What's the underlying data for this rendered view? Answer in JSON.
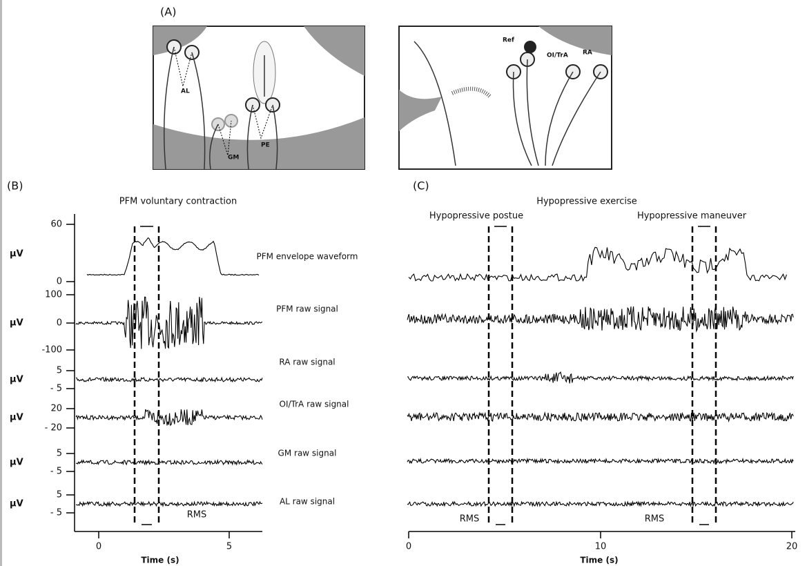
{
  "panel_a": {
    "label": "(A)",
    "left_labels": [
      "AL",
      "GM",
      "PE"
    ],
    "right_labels": [
      "Ref",
      "OI/TrA",
      "RA"
    ]
  },
  "panel_b": {
    "label": "(B)",
    "title": "PFM voluntary contraction",
    "unit": "μV",
    "channels": [
      {
        "name": "PFM envelope waveform",
        "ticks": [
          "60",
          "0"
        ]
      },
      {
        "name": "PFM raw signal",
        "ticks": [
          "100",
          "0",
          "-100"
        ]
      },
      {
        "name": "RA raw signal",
        "ticks": [
          "5",
          "- 5"
        ]
      },
      {
        "name": "OI/TrA raw signal",
        "ticks": [
          "20",
          "- 20"
        ]
      },
      {
        "name": "GM raw signal",
        "ticks": [
          "5",
          "- 5"
        ]
      },
      {
        "name": "AL raw signal",
        "ticks": [
          "5",
          "- 5"
        ]
      }
    ],
    "rms": "RMS",
    "xticks": [
      "0",
      "5"
    ],
    "xlabel": "Time (s)"
  },
  "panel_c": {
    "label": "(C)",
    "title": "Hypopressive exercise",
    "phases": [
      "Hypopressive postue",
      "Hypopressive maneuver"
    ],
    "rms": "RMS",
    "xticks": [
      "0",
      "10",
      "20"
    ],
    "xlabel": "Time (s)"
  }
}
